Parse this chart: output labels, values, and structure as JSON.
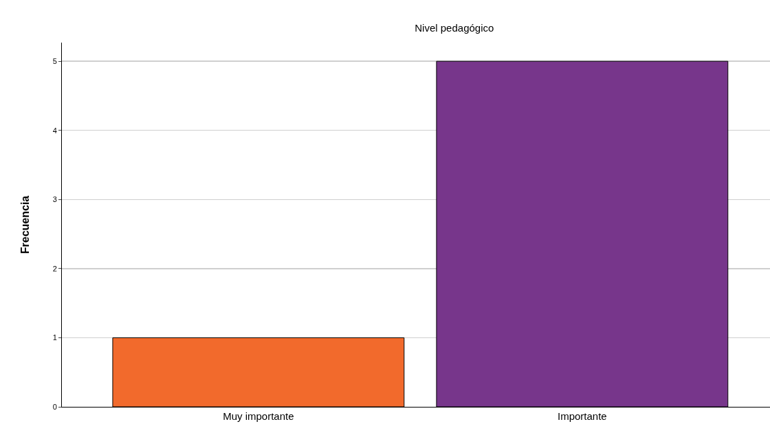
{
  "chart_data": {
    "type": "bar",
    "title": "Nivel pedagógico",
    "ylabel": "Frecuencia",
    "categories": [
      "Muy importante",
      "Importante"
    ],
    "values": [
      1,
      5
    ],
    "colors": [
      "#f26a2c",
      "#77368b"
    ],
    "ylim": [
      0,
      5.27
    ],
    "yticks": [
      0,
      1,
      2,
      3,
      4,
      5
    ],
    "grid": "y"
  }
}
